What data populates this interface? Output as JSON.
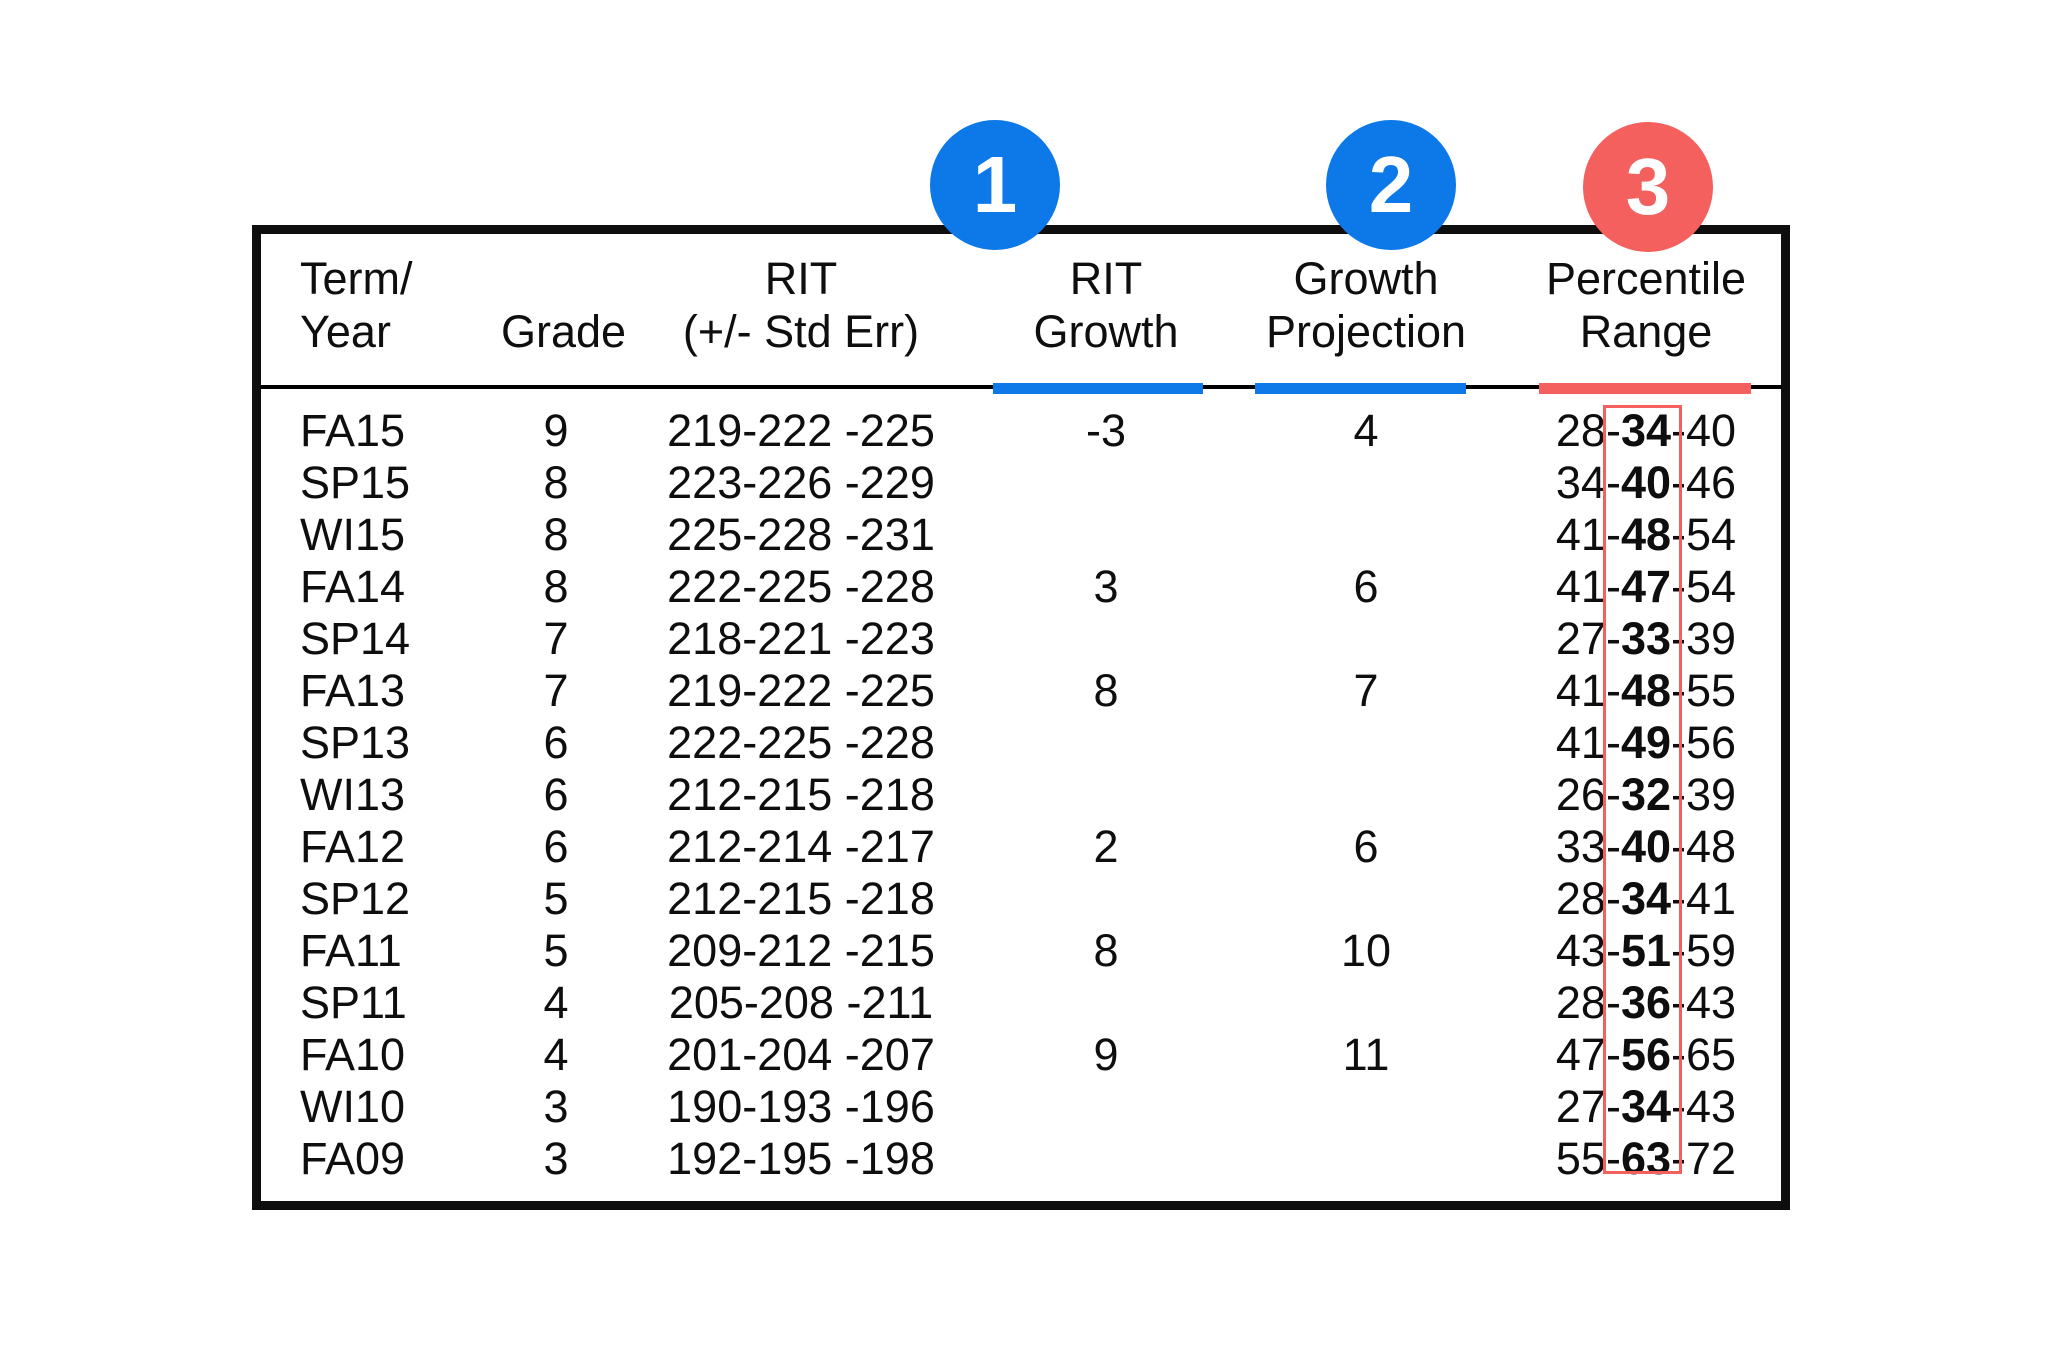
{
  "colors": {
    "accent_blue": "#0d79e8",
    "accent_red": "#f4605e",
    "table_border": "#0e0e0e"
  },
  "callouts": [
    {
      "number": "1",
      "color": "blue"
    },
    {
      "number": "2",
      "color": "blue"
    },
    {
      "number": "3",
      "color": "red"
    }
  ],
  "table": {
    "headers": [
      {
        "line1": "Term/",
        "line2": "Year"
      },
      {
        "line1": "",
        "line2": "Grade"
      },
      {
        "line1": "RIT",
        "line2": "(+/- Std Err)"
      },
      {
        "line1": "RIT",
        "line2": "Growth"
      },
      {
        "line1": "Growth",
        "line2": "Projection"
      },
      {
        "line1": "Percentile",
        "line2": "Range"
      }
    ],
    "rows": [
      {
        "term": "FA15",
        "grade": "9",
        "rit": "219-222 -225",
        "rit_growth": "-3",
        "growth_projection": "4",
        "percentile": {
          "low": "28",
          "mid": "34",
          "high": "40"
        }
      },
      {
        "term": "SP15",
        "grade": "8",
        "rit": "223-226 -229",
        "rit_growth": "",
        "growth_projection": "",
        "percentile": {
          "low": "34",
          "mid": "40",
          "high": "46"
        }
      },
      {
        "term": "WI15",
        "grade": "8",
        "rit": "225-228 -231",
        "rit_growth": "",
        "growth_projection": "",
        "percentile": {
          "low": "41",
          "mid": "48",
          "high": "54"
        }
      },
      {
        "term": "FA14",
        "grade": "8",
        "rit": "222-225 -228",
        "rit_growth": "3",
        "growth_projection": "6",
        "percentile": {
          "low": "41",
          "mid": "47",
          "high": "54"
        }
      },
      {
        "term": "SP14",
        "grade": "7",
        "rit": "218-221 -223",
        "rit_growth": "",
        "growth_projection": "",
        "percentile": {
          "low": "27",
          "mid": "33",
          "high": "39"
        }
      },
      {
        "term": "FA13",
        "grade": "7",
        "rit": "219-222 -225",
        "rit_growth": "8",
        "growth_projection": "7",
        "percentile": {
          "low": "41",
          "mid": "48",
          "high": "55"
        }
      },
      {
        "term": "SP13",
        "grade": "6",
        "rit": "222-225 -228",
        "rit_growth": "",
        "growth_projection": "",
        "percentile": {
          "low": "41",
          "mid": "49",
          "high": "56"
        }
      },
      {
        "term": "WI13",
        "grade": "6",
        "rit": "212-215 -218",
        "rit_growth": "",
        "growth_projection": "",
        "percentile": {
          "low": "26",
          "mid": "32",
          "high": "39"
        }
      },
      {
        "term": "FA12",
        "grade": "6",
        "rit": "212-214 -217",
        "rit_growth": "2",
        "growth_projection": "6",
        "percentile": {
          "low": "33",
          "mid": "40",
          "high": "48"
        }
      },
      {
        "term": "SP12",
        "grade": "5",
        "rit": "212-215 -218",
        "rit_growth": "",
        "growth_projection": "",
        "percentile": {
          "low": "28",
          "mid": "34",
          "high": "41"
        }
      },
      {
        "term": "FA11",
        "grade": "5",
        "rit": "209-212 -215",
        "rit_growth": "8",
        "growth_projection": "10",
        "percentile": {
          "low": "43",
          "mid": "51",
          "high": "59"
        }
      },
      {
        "term": "SP11",
        "grade": "4",
        "rit": "205-208 -211",
        "rit_growth": "",
        "growth_projection": "",
        "percentile": {
          "low": "28",
          "mid": "36",
          "high": "43"
        }
      },
      {
        "term": "FA10",
        "grade": "4",
        "rit": "201-204 -207",
        "rit_growth": "9",
        "growth_projection": "11",
        "percentile": {
          "low": "47",
          "mid": "56",
          "high": "65"
        }
      },
      {
        "term": "WI10",
        "grade": "3",
        "rit": "190-193 -196",
        "rit_growth": "",
        "growth_projection": "",
        "percentile": {
          "low": "27",
          "mid": "34",
          "high": "43"
        }
      },
      {
        "term": "FA09",
        "grade": "3",
        "rit": "192-195 -198",
        "rit_growth": "",
        "growth_projection": "",
        "percentile": {
          "low": "55",
          "mid": "63",
          "high": "72"
        }
      }
    ]
  }
}
